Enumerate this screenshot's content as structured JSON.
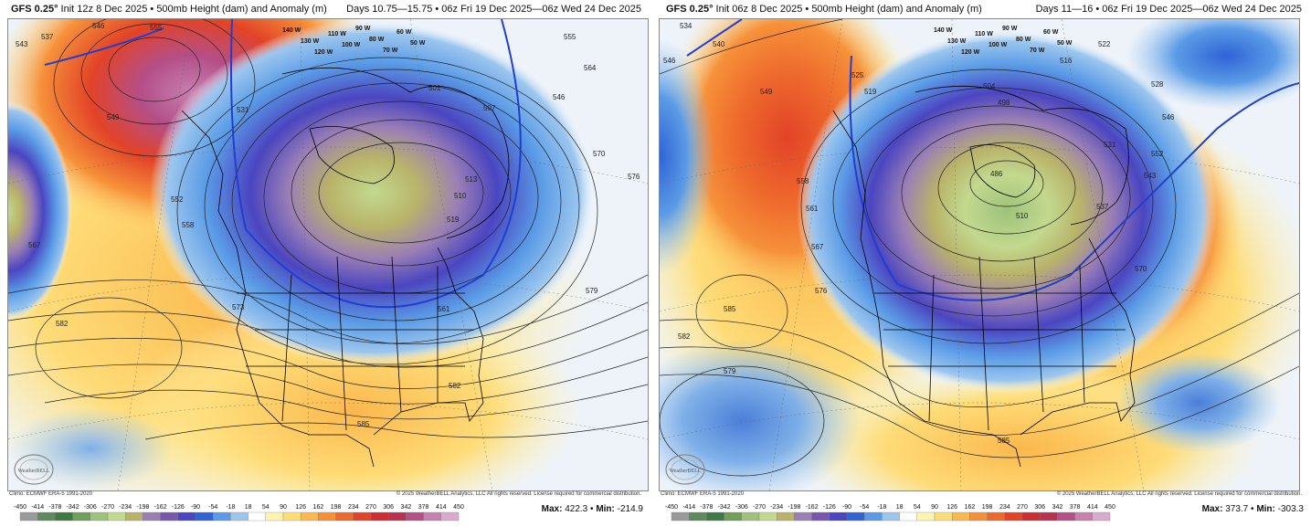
{
  "panels": [
    {
      "model": "GFS 0.25°",
      "init": "Init 12z 8 Dec 2025",
      "product": "500mb Height (dam) and Anomaly (m)",
      "days": "Days 10.75—15.75 • 06z Fri 19 Dec 2025—06z Wed 24 Dec 2025",
      "clim": "Climo: ECMWF ERA-5 1991-2020",
      "copyright": "© 2025 WeatherBELL Analytics, LLC All rights reserved. License required for commercial distribution.",
      "max_label": "Max:",
      "max": "422.3",
      "min_label": "Min:",
      "min": "-214.9",
      "contour_labels": [
        "543",
        "537",
        "546",
        "555",
        "549",
        "552",
        "558",
        "567",
        "573",
        "582",
        "585",
        "531",
        "519",
        "510",
        "513",
        "507",
        "501",
        "546",
        "555",
        "564",
        "570",
        "576",
        "579",
        "561",
        "582"
      ],
      "lon_labels": [
        "140 W",
        "130 W",
        "120 W",
        "110 W",
        "100 W",
        "90 W",
        "80 W",
        "70 W",
        "60 W",
        "50 W"
      ]
    },
    {
      "model": "GFS 0.25°",
      "init": "Init 06z 8 Dec 2025",
      "product": "500mb Height (dam) and Anomaly (m)",
      "days": "Days 11—16 • 06z Fri 19 Dec 2025—06z Wed 24 Dec 2025",
      "clim": "Climo: ECMWF ERA-5 1991-2020",
      "copyright": "© 2025 WeatherBELL Analytics, LLC All rights reserved. License required for commercial distribution.",
      "max_label": "Max:",
      "max": "373.7",
      "min_label": "Min:",
      "min": "-303.3",
      "contour_labels": [
        "546",
        "534",
        "540",
        "549",
        "558",
        "561",
        "567",
        "576",
        "585",
        "582",
        "579",
        "525",
        "519",
        "516",
        "522",
        "528",
        "504",
        "498",
        "486",
        "510",
        "537",
        "543",
        "546",
        "552",
        "570",
        "531",
        "585"
      ],
      "lon_labels": [
        "140 W",
        "130 W",
        "120 W",
        "110 W",
        "100 W",
        "90 W",
        "80 W",
        "70 W",
        "60 W",
        "50 W"
      ]
    }
  ],
  "colorbar": {
    "ticks": [
      "-450",
      "-414",
      "-378",
      "-342",
      "-306",
      "-270",
      "-234",
      "-198",
      "-162",
      "-126",
      "-90",
      "-54",
      "-18",
      "18",
      "54",
      "90",
      "126",
      "162",
      "198",
      "234",
      "270",
      "306",
      "342",
      "378",
      "414",
      "450"
    ],
    "colors": [
      "#9a9a9a",
      "#5f8a5f",
      "#3f7a45",
      "#6f9f5a",
      "#9ec27a",
      "#c2d98e",
      "#b9b36a",
      "#9a7fb5",
      "#7a55b0",
      "#4b45c0",
      "#2f63d6",
      "#5a9be6",
      "#9cc6ee",
      "#ffffff",
      "#fff3b0",
      "#fedc78",
      "#fbb84d",
      "#f6913a",
      "#ee6a2c",
      "#e24327",
      "#cf2d33",
      "#b8334f",
      "#b44f88",
      "#c77fb0",
      "#d9a9cf"
    ]
  },
  "logo_text": "WeatherBELL"
}
